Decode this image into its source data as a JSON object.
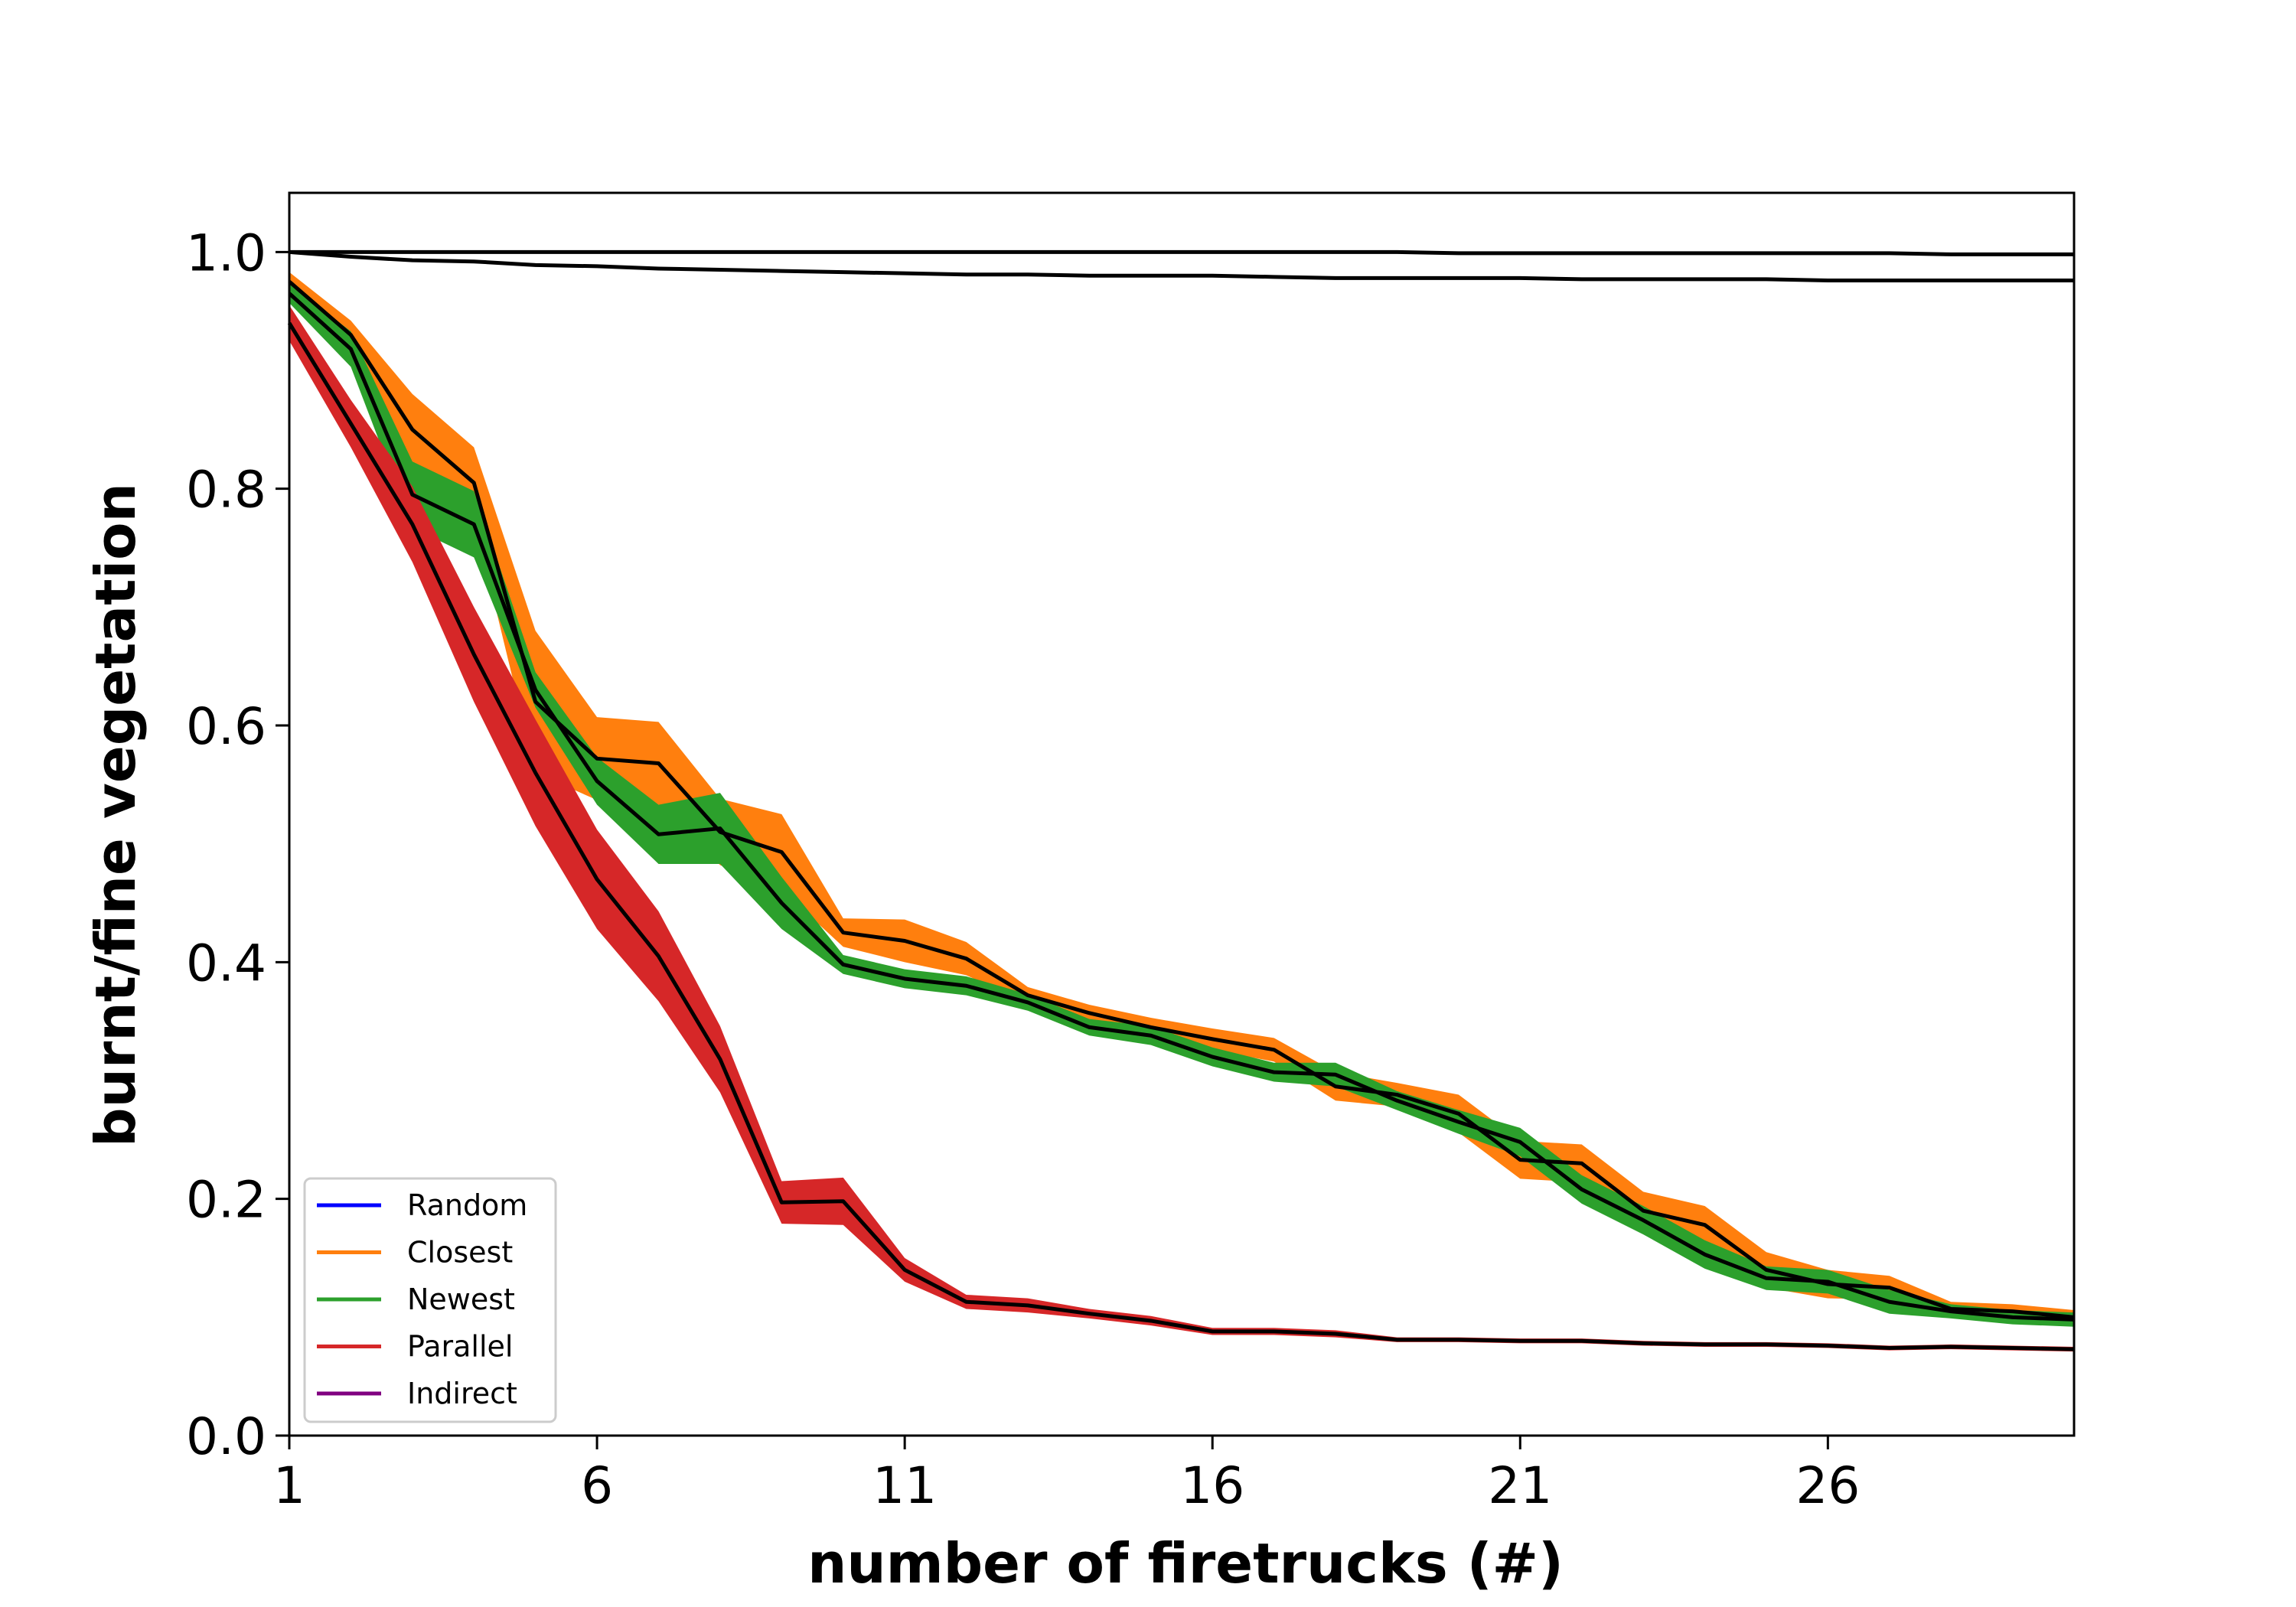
{
  "chart_data": {
    "type": "line",
    "title": "",
    "xlabel": "number of firetrucks (#)",
    "ylabel": "burnt/fine vegetation",
    "xlim": [
      1,
      30
    ],
    "ylim": [
      0.0,
      1.05
    ],
    "xticks": [
      1,
      6,
      11,
      16,
      21,
      26
    ],
    "yticks": [
      0.0,
      0.2,
      0.4,
      0.6,
      0.8,
      1.0
    ],
    "ytick_labels": [
      "0.0",
      "0.2",
      "0.4",
      "0.6",
      "0.8",
      "1.0"
    ],
    "grid": false,
    "legend_position": "lower-left",
    "mean_line_color": "#000000",
    "x": [
      1,
      2,
      3,
      4,
      5,
      6,
      7,
      8,
      9,
      10,
      11,
      12,
      13,
      14,
      15,
      16,
      17,
      18,
      19,
      20,
      21,
      22,
      23,
      24,
      25,
      26,
      27,
      28,
      29,
      30
    ],
    "series": [
      {
        "name": "Random",
        "color": "#0000ff",
        "values": [
          1.0,
          1.0,
          1.0,
          1.0,
          1.0,
          1.0,
          1.0,
          1.0,
          1.0,
          1.0,
          1.0,
          1.0,
          1.0,
          1.0,
          1.0,
          1.0,
          1.0,
          1.0,
          1.0,
          0.999,
          0.999,
          0.999,
          0.999,
          0.999,
          0.999,
          0.999,
          0.999,
          0.998,
          0.998,
          0.998
        ],
        "band": [
          0.0,
          0.0,
          0.0,
          0.0,
          0.0,
          0.0,
          0.0,
          0.0,
          0.0,
          0.0,
          0.0,
          0.0,
          0.0,
          0.0,
          0.0,
          0.0,
          0.0,
          0.0,
          0.0,
          0.0,
          0.0,
          0.0,
          0.0,
          0.0,
          0.0,
          0.0,
          0.0,
          0.0,
          0.0,
          0.0
        ]
      },
      {
        "name": "Closest",
        "color": "#ff7f0e",
        "values": [
          0.975,
          0.93,
          0.85,
          0.805,
          0.62,
          0.572,
          0.568,
          0.51,
          0.493,
          0.425,
          0.418,
          0.403,
          0.372,
          0.357,
          0.345,
          0.335,
          0.326,
          0.295,
          0.288,
          0.272,
          0.233,
          0.23,
          0.19,
          0.178,
          0.14,
          0.128,
          0.125,
          0.107,
          0.105,
          0.1
        ],
        "band": [
          0.008,
          0.012,
          0.03,
          0.03,
          0.06,
          0.035,
          0.035,
          0.028,
          0.032,
          0.012,
          0.018,
          0.014,
          0.007,
          0.007,
          0.008,
          0.009,
          0.01,
          0.012,
          0.01,
          0.016,
          0.016,
          0.016,
          0.016,
          0.016,
          0.015,
          0.012,
          0.01,
          0.006,
          0.006,
          0.006
        ]
      },
      {
        "name": "Newest",
        "color": "#2ca02c",
        "values": [
          0.965,
          0.918,
          0.795,
          0.77,
          0.63,
          0.553,
          0.508,
          0.513,
          0.45,
          0.398,
          0.386,
          0.38,
          0.366,
          0.345,
          0.338,
          0.32,
          0.307,
          0.305,
          0.283,
          0.265,
          0.248,
          0.208,
          0.182,
          0.153,
          0.133,
          0.13,
          0.113,
          0.105,
          0.1,
          0.098
        ],
        "band": [
          0.008,
          0.015,
          0.028,
          0.028,
          0.015,
          0.02,
          0.025,
          0.03,
          0.022,
          0.008,
          0.008,
          0.008,
          0.007,
          0.007,
          0.008,
          0.008,
          0.008,
          0.01,
          0.008,
          0.01,
          0.012,
          0.012,
          0.012,
          0.012,
          0.01,
          0.01,
          0.01,
          0.006,
          0.006,
          0.006
        ]
      },
      {
        "name": "Parallel",
        "color": "#d62728",
        "values": [
          0.94,
          0.855,
          0.77,
          0.66,
          0.56,
          0.47,
          0.405,
          0.318,
          0.197,
          0.198,
          0.14,
          0.113,
          0.11,
          0.103,
          0.097,
          0.088,
          0.088,
          0.086,
          0.081,
          0.081,
          0.08,
          0.08,
          0.078,
          0.077,
          0.077,
          0.076,
          0.074,
          0.075,
          0.074,
          0.073
        ],
        "band": [
          0.015,
          0.02,
          0.032,
          0.04,
          0.045,
          0.042,
          0.038,
          0.028,
          0.018,
          0.02,
          0.01,
          0.006,
          0.006,
          0.004,
          0.004,
          0.003,
          0.003,
          0.003,
          0.002,
          0.002,
          0.002,
          0.002,
          0.002,
          0.002,
          0.002,
          0.002,
          0.002,
          0.002,
          0.002,
          0.002
        ]
      },
      {
        "name": "Indirect",
        "color": "#800080",
        "values": [
          1.0,
          0.996,
          0.993,
          0.992,
          0.989,
          0.988,
          0.986,
          0.985,
          0.984,
          0.983,
          0.982,
          0.981,
          0.981,
          0.98,
          0.98,
          0.98,
          0.979,
          0.978,
          0.978,
          0.978,
          0.978,
          0.977,
          0.977,
          0.977,
          0.977,
          0.976,
          0.976,
          0.976,
          0.976,
          0.976
        ],
        "band": [
          0.0,
          0.0,
          0.0,
          0.0,
          0.0,
          0.0,
          0.0,
          0.0,
          0.0,
          0.0,
          0.0,
          0.0,
          0.0,
          0.0,
          0.0,
          0.0,
          0.0,
          0.0,
          0.0,
          0.0,
          0.0,
          0.0,
          0.0,
          0.0,
          0.0,
          0.0,
          0.0,
          0.0,
          0.0,
          0.0
        ]
      }
    ]
  }
}
